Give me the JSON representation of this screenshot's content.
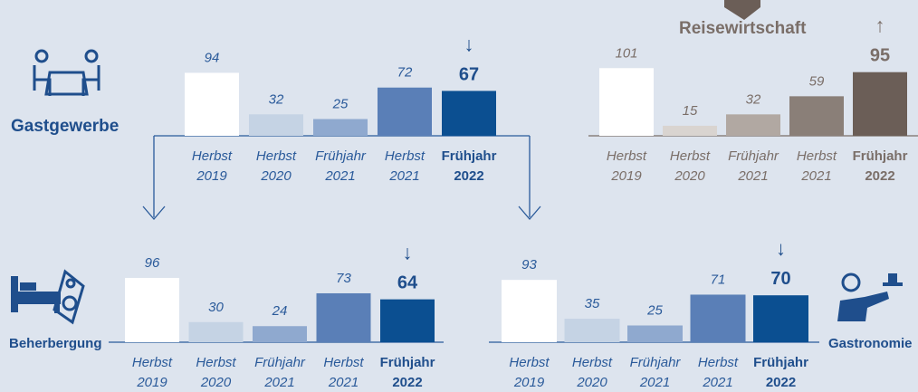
{
  "chart_data": [
    {
      "type": "bar",
      "title": "Gastgewerbe",
      "trend": "↓",
      "categories": [
        [
          "Herbst",
          "2019"
        ],
        [
          "Herbst",
          "2020"
        ],
        [
          "Frühjahr",
          "2021"
        ],
        [
          "Herbst",
          "2021"
        ],
        [
          "Frühjahr",
          "2022"
        ]
      ],
      "values": [
        94,
        32,
        25,
        72,
        67
      ],
      "colors": [
        "#ffffff",
        "#c5d3e4",
        "#8fa9cf",
        "#5a7fb7",
        "#0b4f91"
      ]
    },
    {
      "type": "bar",
      "title": "Reisewirtschaft",
      "trend": "↑",
      "categories": [
        [
          "Herbst",
          "2019"
        ],
        [
          "Herbst",
          "2020"
        ],
        [
          "Frühjahr",
          "2021"
        ],
        [
          "Herbst",
          "2021"
        ],
        [
          "Frühjahr",
          "2022"
        ]
      ],
      "values": [
        101,
        15,
        32,
        59,
        95
      ],
      "colors": [
        "#ffffff",
        "#d9d4d0",
        "#b1a8a2",
        "#8a7f78",
        "#6b5e57"
      ]
    },
    {
      "type": "bar",
      "title": "Beherbergung",
      "trend": "↓",
      "categories": [
        [
          "Herbst",
          "2019"
        ],
        [
          "Herbst",
          "2020"
        ],
        [
          "Frühjahr",
          "2021"
        ],
        [
          "Herbst",
          "2021"
        ],
        [
          "Frühjahr",
          "2022"
        ]
      ],
      "values": [
        96,
        30,
        24,
        73,
        64
      ],
      "colors": [
        "#ffffff",
        "#c5d3e4",
        "#8fa9cf",
        "#5a7fb7",
        "#0b4f91"
      ]
    },
    {
      "type": "bar",
      "title": "Gastronomie",
      "trend": "↓",
      "categories": [
        [
          "Herbst",
          "2019"
        ],
        [
          "Herbst",
          "2020"
        ],
        [
          "Frühjahr",
          "2021"
        ],
        [
          "Herbst",
          "2021"
        ],
        [
          "Frühjahr",
          "2022"
        ]
      ],
      "values": [
        93,
        35,
        25,
        71,
        70
      ],
      "colors": [
        "#ffffff",
        "#c5d3e4",
        "#8fa9cf",
        "#5a7fb7",
        "#0b4f91"
      ]
    }
  ]
}
